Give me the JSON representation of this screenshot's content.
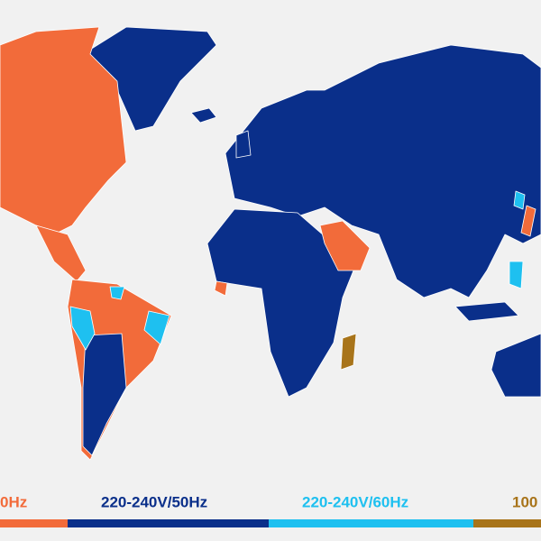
{
  "legend": {
    "items": [
      {
        "label": "0Hz",
        "color": "#f26b3a"
      },
      {
        "label": "220-240V/50Hz",
        "color": "#0a2f8a"
      },
      {
        "label": "220-240V/60Hz",
        "color": "#1ec0f0"
      },
      {
        "label": "100",
        "color": "#a8741a"
      }
    ]
  }
}
